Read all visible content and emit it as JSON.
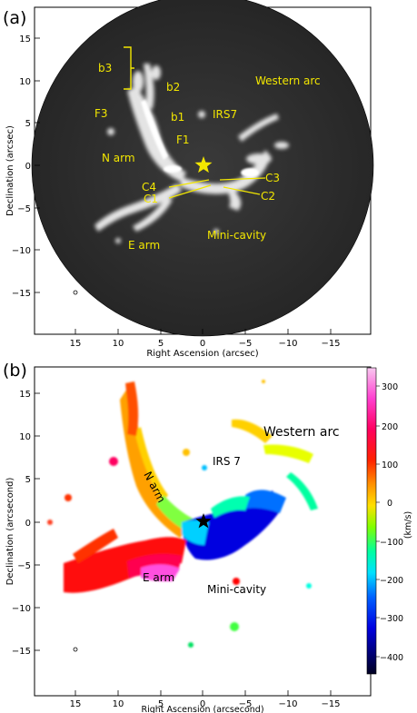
{
  "panels": [
    {
      "id": "a",
      "label": "(a)",
      "xlabel": "Right Ascension (arcsec)",
      "ylabel": "Declination (arcsec)",
      "xticks": [
        "15",
        "10",
        "5",
        "0",
        "−5",
        "−10",
        "−15"
      ],
      "yticks": [
        "15",
        "10",
        "5",
        "0",
        "−5",
        "−10",
        "−15"
      ],
      "annotations": [
        "b3",
        "b2",
        "F3",
        "b1",
        "IRS7",
        "F1",
        "N arm",
        "Western arc",
        "C3",
        "C4",
        "C1",
        "C2",
        "Mini-cavity",
        "E arm"
      ]
    },
    {
      "id": "b",
      "label": "(b)",
      "xlabel": "Right Ascension (arcsecond)",
      "ylabel": "Declination (arcsecond)",
      "xticks": [
        "15",
        "10",
        "5",
        "0",
        "−5",
        "−10",
        "−15"
      ],
      "yticks": [
        "15",
        "10",
        "5",
        "0",
        "−5",
        "−10",
        "−15"
      ],
      "annotations": [
        "Western arc",
        "IRS 7",
        "N arm",
        "E arm",
        "Mini-cavity"
      ],
      "colorbar": {
        "label": "(km/s)",
        "ticks": [
          "300",
          "200",
          "100",
          "0",
          "−100",
          "−200",
          "−300",
          "−400"
        ]
      }
    }
  ],
  "colors": {
    "annotation_a": "#f2e600",
    "star_a": "#f2e600",
    "star_b": "#000000"
  }
}
